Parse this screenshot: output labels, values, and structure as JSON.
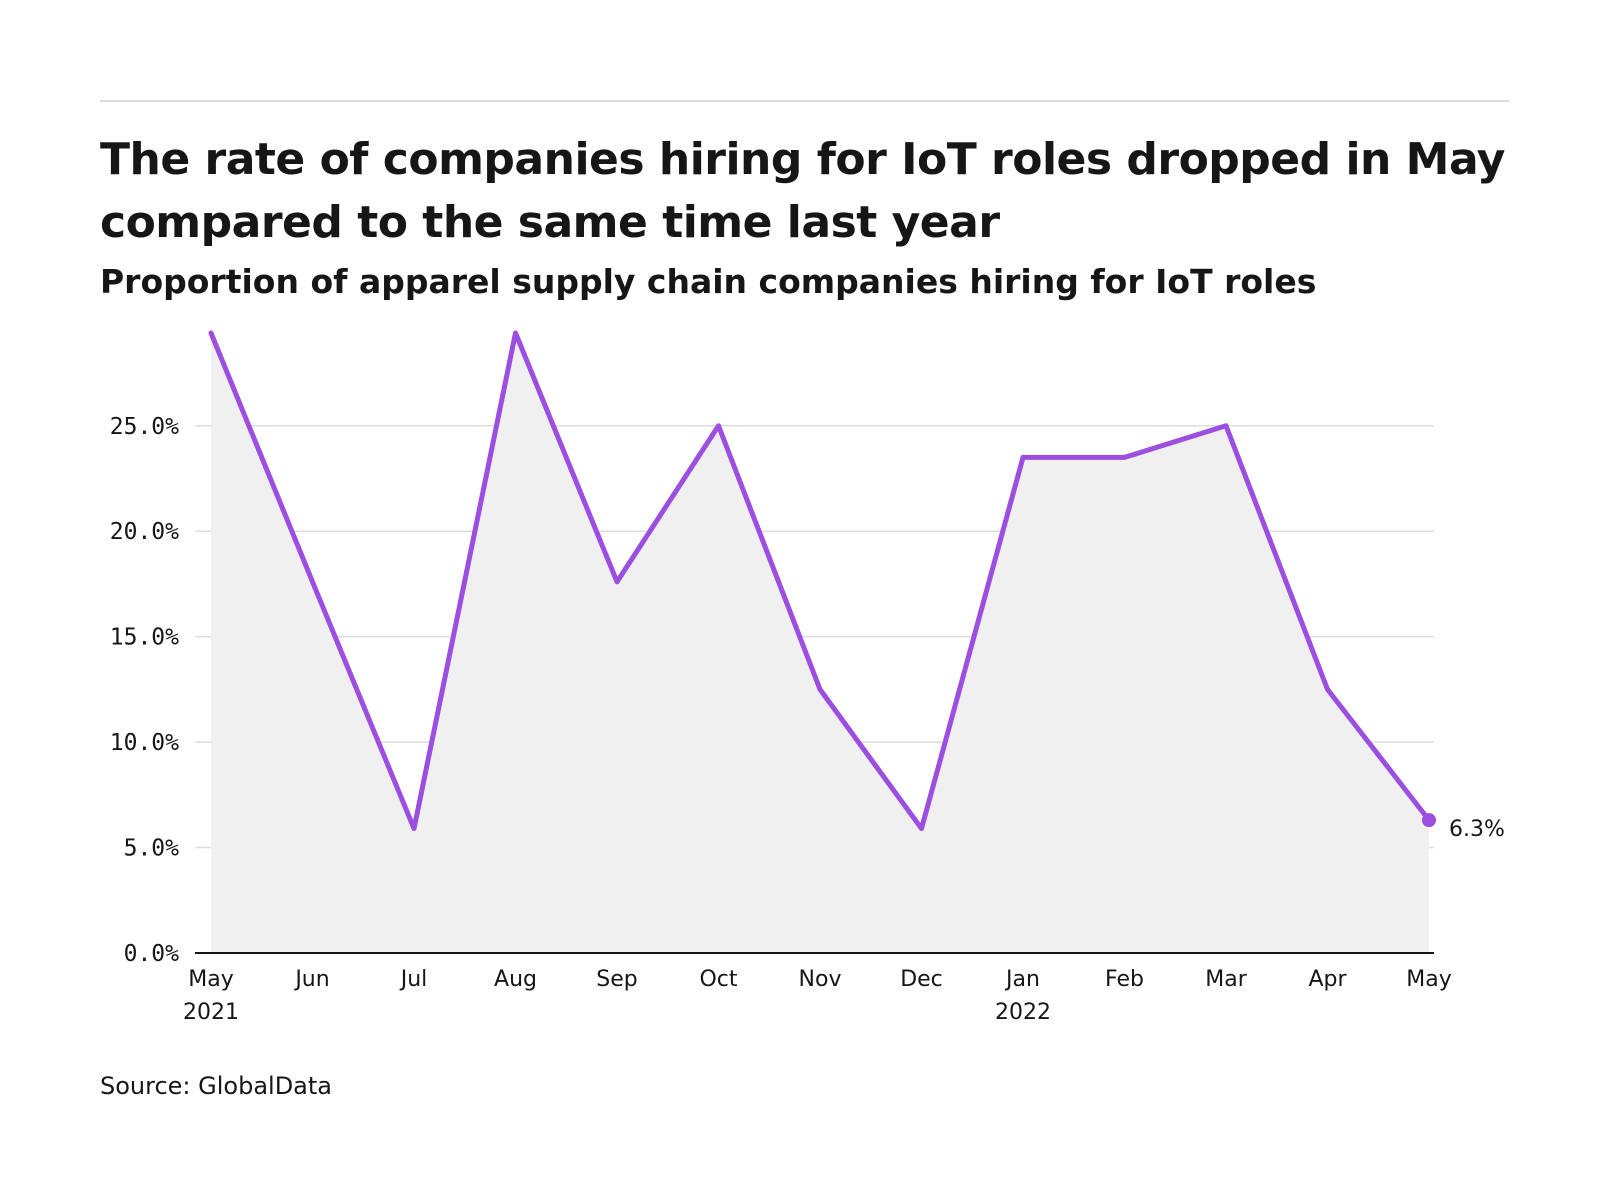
{
  "header": {
    "title": "The rate of companies hiring for IoT roles dropped in May compared to the same time last year",
    "subtitle": "Proportion of apparel supply chain companies hiring for IoT roles"
  },
  "footer": {
    "source": "Source: GlobalData"
  },
  "chart_data": {
    "type": "area",
    "categories": [
      "May",
      "Jun",
      "Jul",
      "Aug",
      "Sep",
      "Oct",
      "Nov",
      "Dec",
      "Jan",
      "Feb",
      "Mar",
      "Apr",
      "May"
    ],
    "category_sublabels": [
      "2021",
      "",
      "",
      "",
      "",
      "",
      "",
      "",
      "2022",
      "",
      "",
      "",
      ""
    ],
    "series": [
      {
        "values": [
          29.4,
          17.6,
          5.9,
          29.4,
          17.6,
          25.0,
          12.5,
          5.9,
          23.5,
          23.5,
          25.0,
          12.5,
          6.3
        ]
      }
    ],
    "end_label": "6.3%",
    "ylim": [
      0,
      29.4
    ],
    "yticks": [
      0,
      5,
      10,
      15,
      20,
      25
    ],
    "ytick_labels": [
      "0.0%",
      "5.0%",
      "10.0%",
      "15.0%",
      "20.0%",
      "25.0%"
    ],
    "grid": true,
    "colors": {
      "line": "#9b4ee0",
      "area": "#f0f0f0",
      "grid": "#dddddd",
      "axis": "#161616"
    }
  }
}
